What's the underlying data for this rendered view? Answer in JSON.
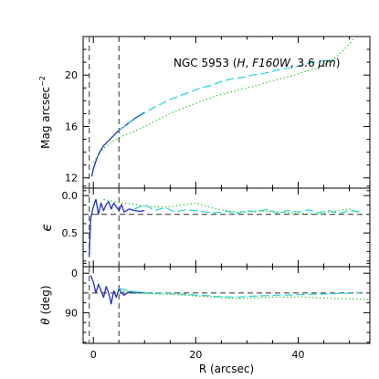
{
  "chart_data": {
    "type": "line",
    "annotation": {
      "galaxy": "NGC 5953",
      "band": "H",
      "filter": "F160W",
      "wavelength": "3.6",
      "unit": "μm"
    },
    "xlabel": "R (arcsec)",
    "xlim": [
      -2,
      54
    ],
    "xticks": [
      0,
      20,
      40
    ],
    "vertical_lines": [
      -0.8,
      5.0
    ],
    "panels": [
      {
        "name": "surface-brightness",
        "ylabel": "Mag arcsec",
        "ylabel_superscript": "−2",
        "ylim": [
          23.0,
          11.2
        ],
        "yticks": [
          12,
          16,
          20
        ],
        "series": [
          {
            "style": "solid",
            "color": "#1f2fbf",
            "x": [
              -0.3,
              0,
              0.5,
              1,
              1.5,
              2,
              3,
              4,
              5,
              6,
              7,
              8,
              9,
              10
            ],
            "y": [
              12.1,
              12.7,
              13.3,
              13.8,
              14.2,
              14.5,
              14.9,
              15.3,
              15.7,
              16.0,
              16.3,
              16.6,
              16.85,
              17.1
            ]
          },
          {
            "style": "dashed",
            "color": "#22d3e0",
            "x": [
              5,
              7,
              9,
              11,
              13,
              15,
              17,
              19,
              21,
              23,
              25,
              27,
              29,
              31,
              33,
              35,
              37,
              39,
              41,
              43,
              45,
              47
            ],
            "y": [
              15.7,
              16.3,
              16.8,
              17.3,
              17.7,
              18.1,
              18.4,
              18.7,
              19.0,
              19.2,
              19.5,
              19.7,
              19.8,
              20.0,
              20.1,
              20.3,
              20.5,
              20.6,
              20.8,
              21.0,
              21.1,
              21.2
            ]
          },
          {
            "style": "dotted",
            "color": "#33cc33",
            "x": [
              0,
              2,
              4,
              6,
              8,
              10,
              12,
              14,
              16,
              18,
              20,
              22,
              24,
              26,
              28,
              30,
              32,
              34,
              36,
              38,
              40,
              42,
              44,
              46,
              48,
              50,
              51
            ],
            "y": [
              13.2,
              14.3,
              14.9,
              15.3,
              15.6,
              16.0,
              16.4,
              16.8,
              17.2,
              17.5,
              17.8,
              18.1,
              18.4,
              18.6,
              18.8,
              19.0,
              19.2,
              19.45,
              19.65,
              19.85,
              20.1,
              20.35,
              20.6,
              21.0,
              21.6,
              22.4,
              23.0
            ]
          }
        ]
      },
      {
        "name": "ellipticity",
        "ylabel": "ϵ",
        "ylim": [
          -0.1,
          0.95
        ],
        "yticks": [
          0.0,
          0.5
        ],
        "ytick_labels": [
          "0.0",
          "0.5"
        ],
        "hline": 0.25,
        "series": [
          {
            "style": "solid",
            "color": "#1f2fbf",
            "x": [
              -0.8,
              -0.5,
              0,
              0.5,
              1,
              1.5,
              2,
              2.5,
              3,
              3.5,
              4,
              4.5,
              5,
              5.5,
              6,
              7,
              8,
              9,
              10
            ],
            "y": [
              0.8,
              0.3,
              0.15,
              0.05,
              0.25,
              0.1,
              0.2,
              0.12,
              0.08,
              0.18,
              0.1,
              0.15,
              0.2,
              0.12,
              0.22,
              0.18,
              0.2,
              0.21,
              0.2
            ]
          },
          {
            "style": "dashed",
            "color": "#22d3e0",
            "x": [
              8,
              10,
              12,
              14,
              16,
              18,
              20,
              22,
              24,
              26,
              28,
              30,
              32,
              34,
              36,
              38,
              40,
              42,
              44,
              46,
              48,
              50,
              52
            ],
            "y": [
              0.18,
              0.12,
              0.2,
              0.16,
              0.22,
              0.19,
              0.2,
              0.22,
              0.23,
              0.21,
              0.24,
              0.2,
              0.22,
              0.18,
              0.24,
              0.2,
              0.22,
              0.19,
              0.23,
              0.2,
              0.24,
              0.2,
              0.22
            ]
          },
          {
            "style": "dotted",
            "color": "#33cc33",
            "x": [
              2,
              4,
              6,
              8,
              10,
              12,
              14,
              16,
              18,
              20,
              22,
              24,
              26,
              28,
              30,
              32,
              34,
              36,
              38,
              40,
              42,
              44,
              46,
              48,
              50,
              52
            ],
            "y": [
              0.05,
              0.08,
              0.1,
              0.12,
              0.14,
              0.15,
              0.15,
              0.14,
              0.12,
              0.1,
              0.14,
              0.18,
              0.2,
              0.22,
              0.22,
              0.2,
              0.21,
              0.22,
              0.23,
              0.24,
              0.24,
              0.25,
              0.22,
              0.2,
              0.18,
              0.22
            ]
          }
        ]
      },
      {
        "name": "position-angle",
        "ylabel": "θ",
        "ylabel_unit": "(deg)",
        "ylim": [
          -15,
          160
        ],
        "yticks": [
          0,
          90
        ],
        "hline": 45,
        "series": [
          {
            "style": "solid",
            "color": "#1f2fbf",
            "x": [
              -0.5,
              0,
              0.5,
              1,
              1.5,
              2,
              2.5,
              3,
              3.5,
              4,
              4.5,
              5,
              5.5,
              6,
              7,
              8,
              9,
              10
            ],
            "y": [
              5,
              20,
              45,
              25,
              40,
              55,
              30,
              45,
              70,
              40,
              55,
              35,
              45,
              50,
              42,
              45,
              44,
              45
            ]
          },
          {
            "style": "dashed",
            "color": "#22d3e0",
            "x": [
              5,
              8,
              10,
              12,
              14,
              16,
              18,
              20,
              22,
              24,
              26,
              28,
              30,
              32,
              34,
              36,
              38,
              40,
              42,
              44,
              46,
              48,
              50,
              52
            ],
            "y": [
              35,
              42,
              44,
              46,
              45,
              47,
              48,
              50,
              51,
              53,
              54,
              55,
              53,
              52,
              51,
              50,
              50,
              49,
              48,
              48,
              47,
              46,
              46,
              45
            ]
          },
          {
            "style": "dotted",
            "color": "#33cc33",
            "x": [
              5,
              8,
              10,
              12,
              14,
              16,
              18,
              20,
              22,
              24,
              26,
              28,
              30,
              32,
              34,
              36,
              38,
              40,
              42,
              44,
              46,
              48,
              50,
              52,
              54
            ],
            "y": [
              40,
              44,
              46,
              47,
              48,
              49,
              50,
              52,
              53,
              55,
              57,
              58,
              57,
              56,
              55,
              54,
              55,
              54,
              55,
              56,
              57,
              58,
              58,
              59,
              60
            ]
          }
        ]
      }
    ]
  }
}
